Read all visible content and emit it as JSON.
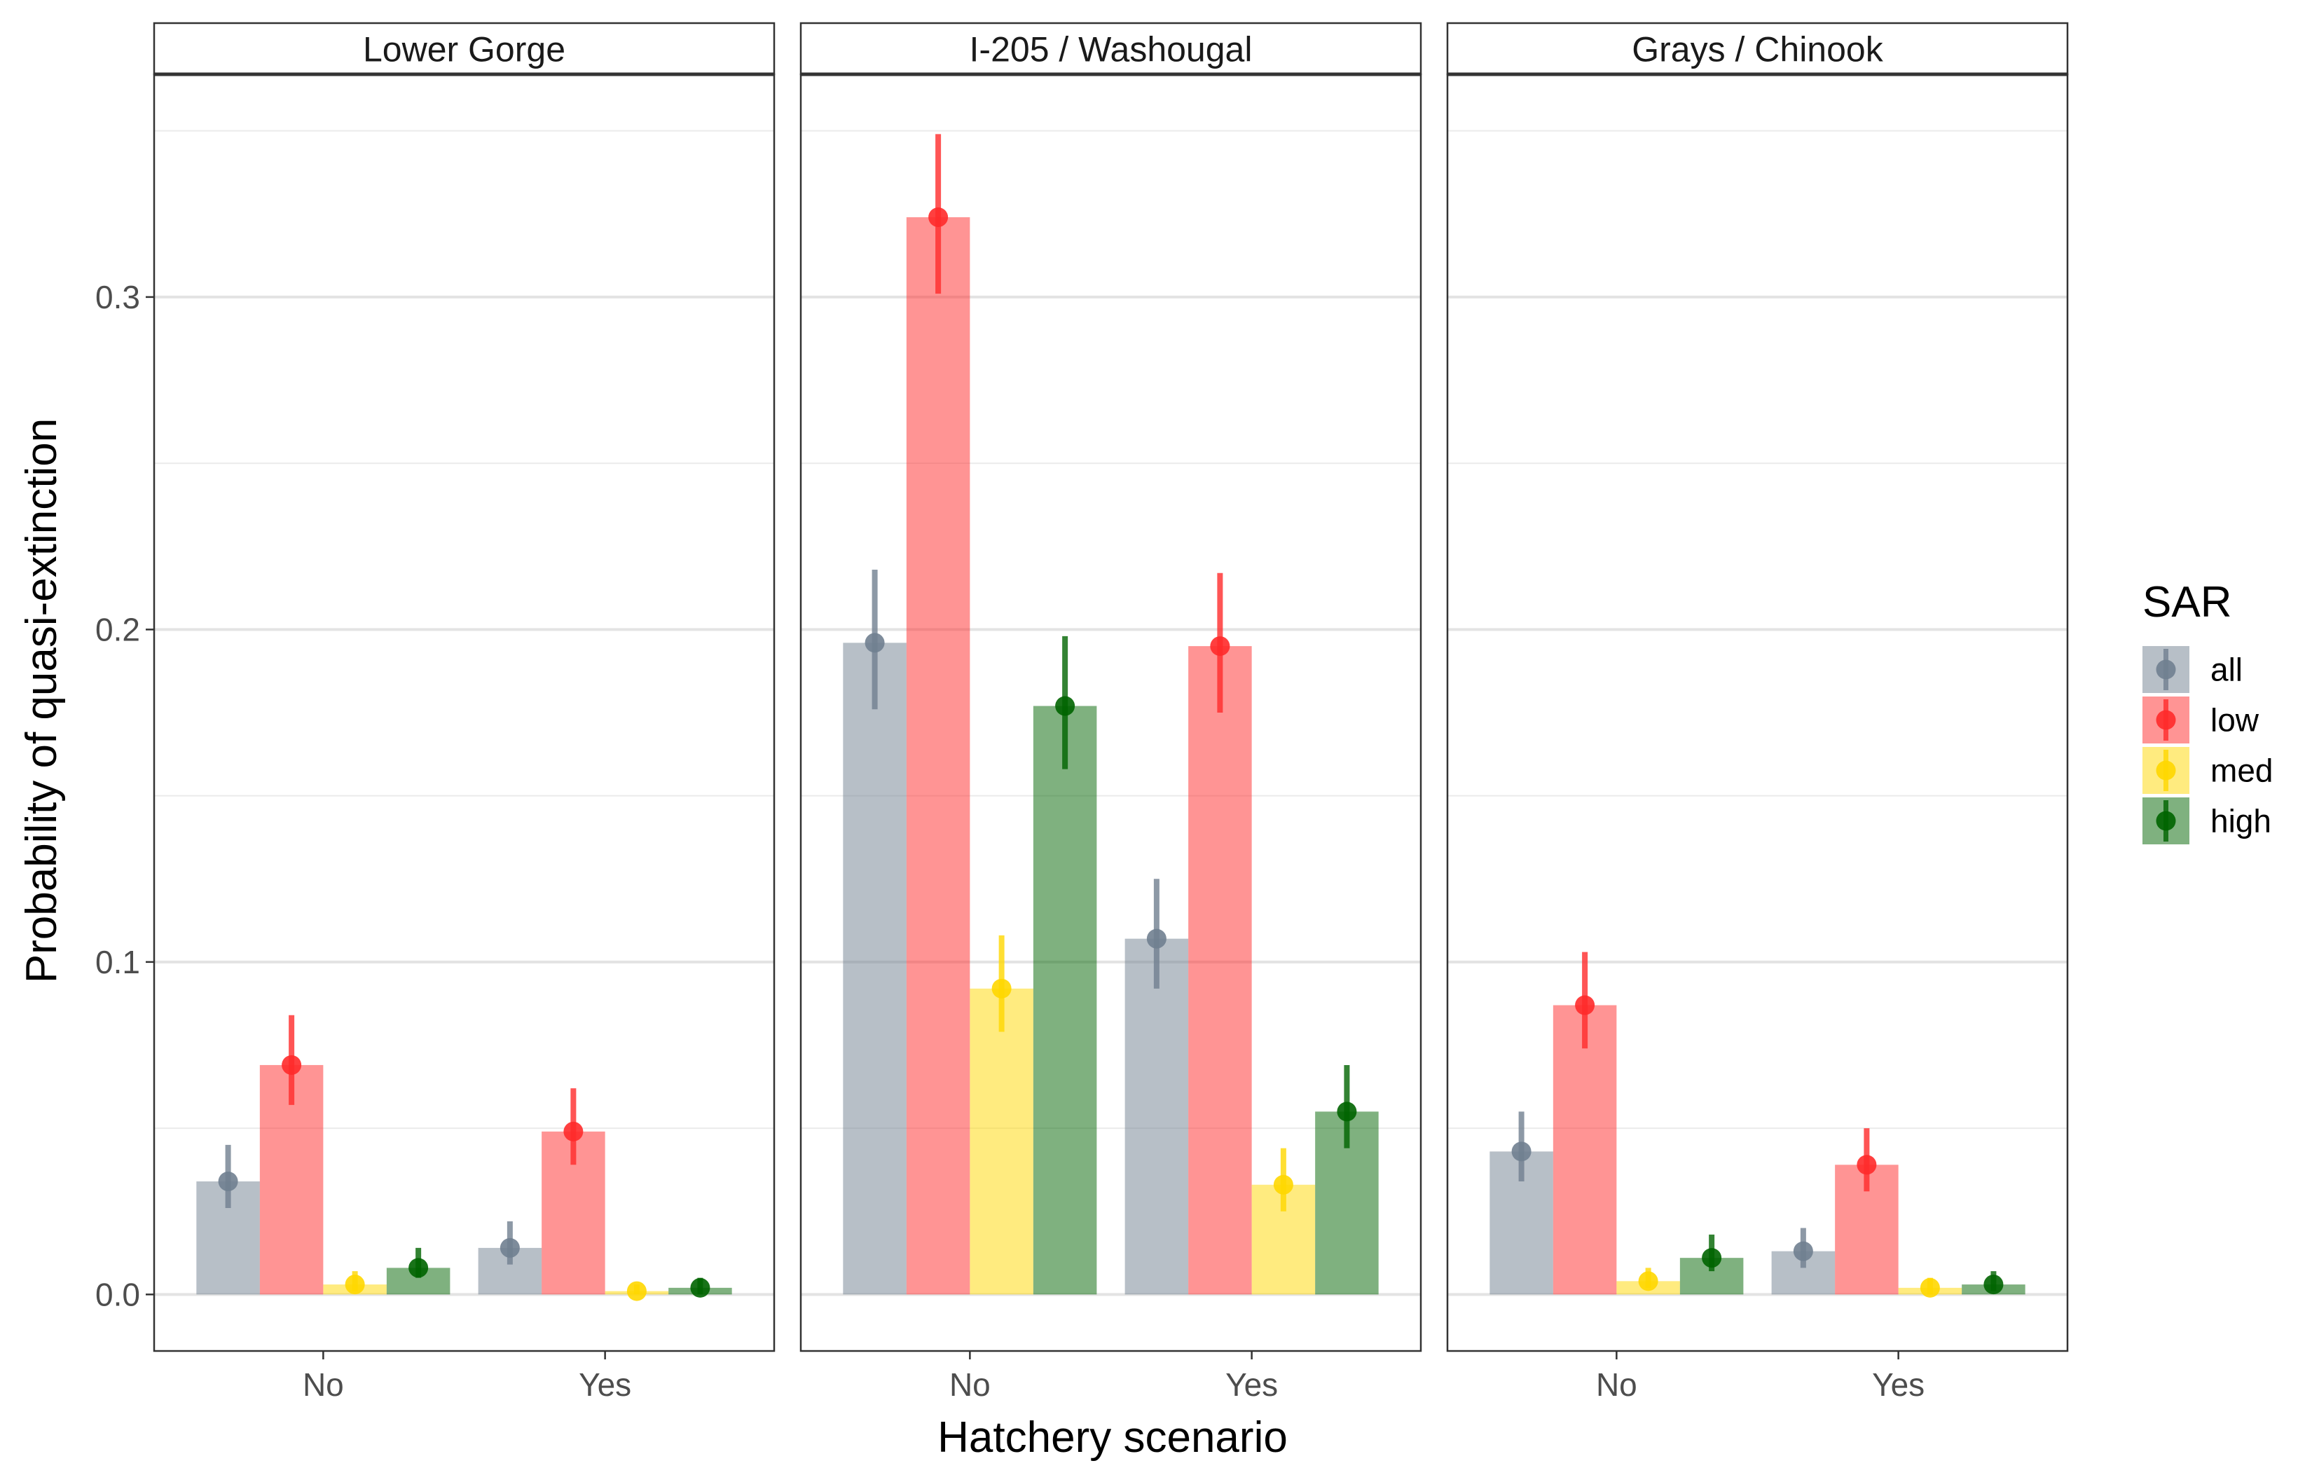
{
  "chart_data": {
    "type": "bar",
    "xlabel": "Hatchery scenario",
    "ylabel": "Probability of quasi-extinction",
    "ylim": [
      -0.017,
      0.367
    ],
    "y_ticks": [
      0.0,
      0.1,
      0.2,
      0.3
    ],
    "y_tick_labels": [
      "0.0",
      "0.1",
      "0.2",
      "0.3"
    ],
    "categories": [
      "No",
      "Yes"
    ],
    "grid": true,
    "legend": {
      "title": "SAR",
      "placement": "right",
      "entries": [
        "all",
        "low",
        "med",
        "high"
      ]
    },
    "series_colors": {
      "all": "#708090",
      "low": "#ff2a2a",
      "med": "#ffd700",
      "high": "#006400"
    },
    "panels": [
      {
        "title": "Lower Gorge",
        "series": [
          {
            "name": "all",
            "values": [
              0.034,
              0.014
            ],
            "lower": [
              0.026,
              0.009
            ],
            "upper": [
              0.045,
              0.022
            ]
          },
          {
            "name": "low",
            "values": [
              0.069,
              0.049
            ],
            "lower": [
              0.057,
              0.039
            ],
            "upper": [
              0.084,
              0.062
            ]
          },
          {
            "name": "med",
            "values": [
              0.003,
              0.001
            ],
            "lower": [
              0.001,
              0.0
            ],
            "upper": [
              0.007,
              0.003
            ]
          },
          {
            "name": "high",
            "values": [
              0.008,
              0.002
            ],
            "lower": [
              0.005,
              0.0
            ],
            "upper": [
              0.014,
              0.005
            ]
          }
        ]
      },
      {
        "title": "I-205 / Washougal",
        "series": [
          {
            "name": "all",
            "values": [
              0.196,
              0.107
            ],
            "lower": [
              0.176,
              0.092
            ],
            "upper": [
              0.218,
              0.125
            ]
          },
          {
            "name": "low",
            "values": [
              0.324,
              0.195
            ],
            "lower": [
              0.301,
              0.175
            ],
            "upper": [
              0.349,
              0.217
            ]
          },
          {
            "name": "med",
            "values": [
              0.092,
              0.033
            ],
            "lower": [
              0.079,
              0.025
            ],
            "upper": [
              0.108,
              0.044
            ]
          },
          {
            "name": "high",
            "values": [
              0.177,
              0.055
            ],
            "lower": [
              0.158,
              0.044
            ],
            "upper": [
              0.198,
              0.069
            ]
          }
        ]
      },
      {
        "title": "Grays / Chinook",
        "series": [
          {
            "name": "all",
            "values": [
              0.043,
              0.013
            ],
            "lower": [
              0.034,
              0.008
            ],
            "upper": [
              0.055,
              0.02
            ]
          },
          {
            "name": "low",
            "values": [
              0.087,
              0.039
            ],
            "lower": [
              0.074,
              0.031
            ],
            "upper": [
              0.103,
              0.05
            ]
          },
          {
            "name": "med",
            "values": [
              0.004,
              0.002
            ],
            "lower": [
              0.002,
              0.0
            ],
            "upper": [
              0.008,
              0.005
            ]
          },
          {
            "name": "high",
            "values": [
              0.011,
              0.003
            ],
            "lower": [
              0.007,
              0.001
            ],
            "upper": [
              0.018,
              0.007
            ]
          }
        ]
      }
    ]
  }
}
